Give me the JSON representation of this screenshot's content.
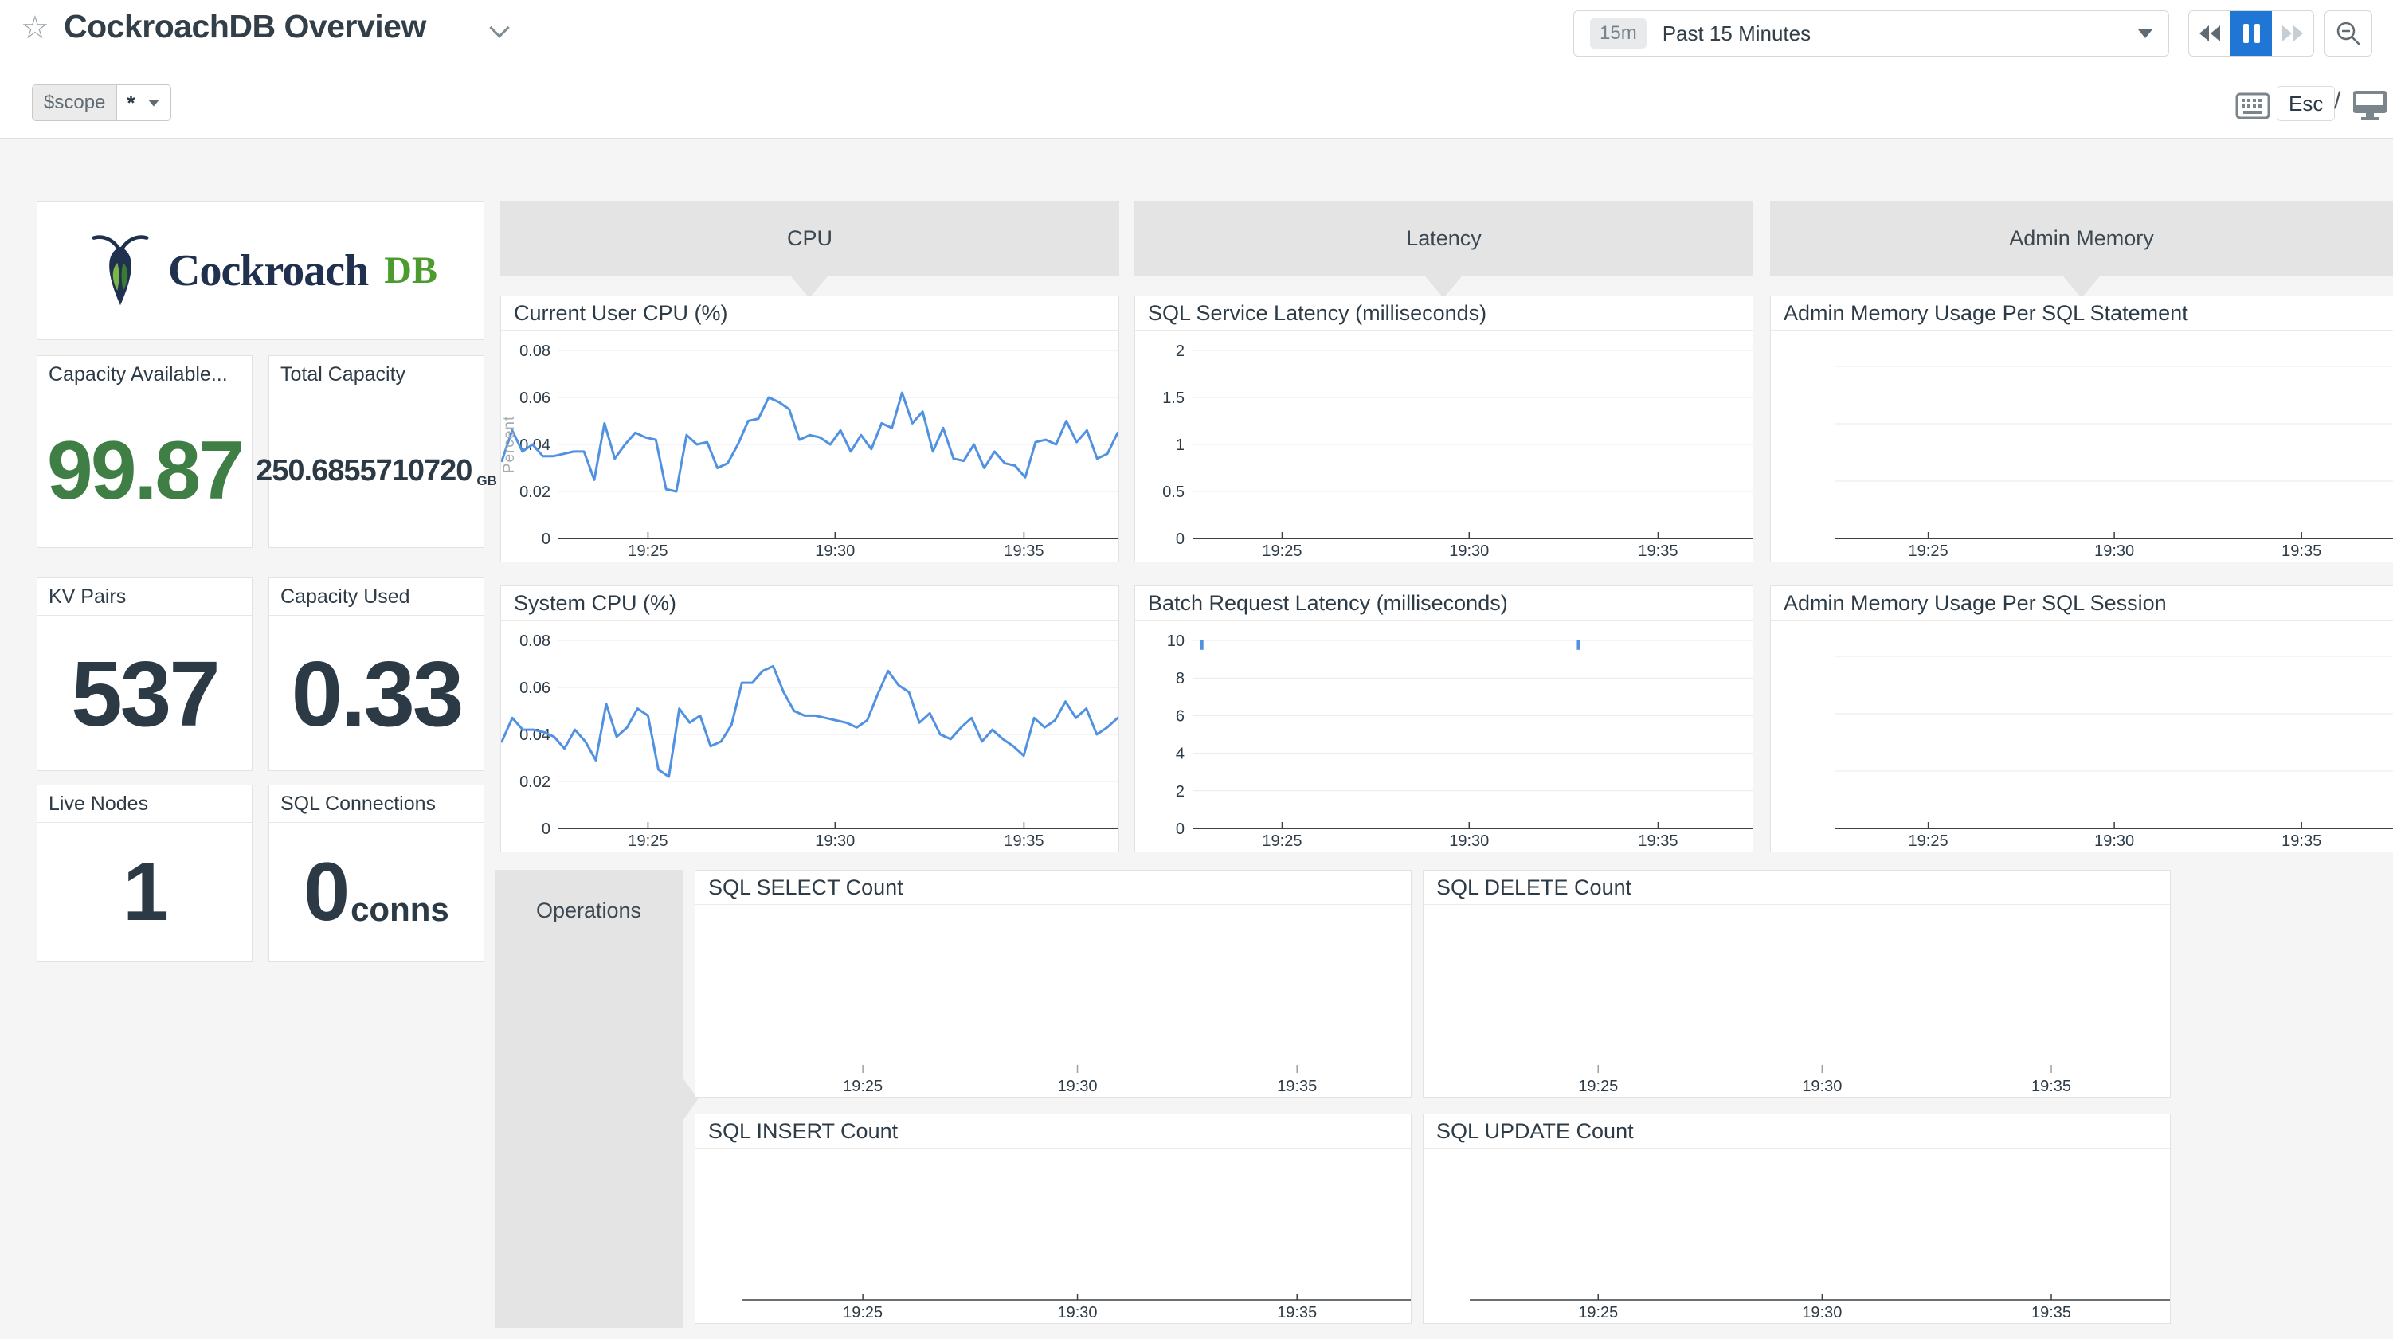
{
  "header": {
    "title": "CockroachDB Overview",
    "template_var": {
      "name": "$scope",
      "value": "*"
    },
    "time": {
      "badge": "15m",
      "label": "Past 15 Minutes"
    },
    "esc_label": "Esc",
    "slash": "/"
  },
  "logo": {
    "wordmark": "Cockroach",
    "suffix": "DB"
  },
  "sections": {
    "cpu": "CPU",
    "latency": "Latency",
    "admin": "Admin Memory",
    "operations": "Operations"
  },
  "stats": {
    "capacity_available": {
      "label": "Capacity Available...",
      "value": "99.87"
    },
    "total_capacity": {
      "label": "Total Capacity",
      "value": "250.6855710720",
      "unit": "GB"
    },
    "kv_pairs": {
      "label": "KV Pairs",
      "value": "537"
    },
    "capacity_used": {
      "label": "Capacity Used",
      "value": "0.33"
    },
    "live_nodes": {
      "label": "Live Nodes",
      "value": "1"
    },
    "sql_connections": {
      "label": "SQL Connections",
      "value": "0",
      "unit": "conns"
    }
  },
  "colors": {
    "accent_blue": "#1f76d4",
    "line_blue": "#5191e1",
    "value_green": "#3f7e44",
    "band_gray": "#e4e4e4"
  },
  "chart_data": {
    "current_user_cpu": {
      "type": "line",
      "title": "Current User CPU (%)",
      "ylabel": "Percent",
      "ymax": 0.08,
      "gutter": 72,
      "axis": true,
      "yticks": [
        {
          "v": 0.08,
          "label": "0.08"
        },
        {
          "v": 0.06,
          "label": "0.06"
        },
        {
          "v": 0.04,
          "label": "0.04"
        },
        {
          "v": 0.02,
          "label": "0.02"
        },
        {
          "v": 0,
          "label": "0"
        }
      ],
      "xticks": {
        "labels": [
          "19:25",
          "19:30",
          "19:35"
        ],
        "fractions": [
          0.238,
          0.541,
          0.847
        ]
      },
      "values": [
        0.033,
        0.046,
        0.037,
        0.04,
        0.035,
        0.035,
        0.036,
        0.037,
        0.037,
        0.025,
        0.049,
        0.034,
        0.04,
        0.045,
        0.043,
        0.042,
        0.021,
        0.02,
        0.044,
        0.04,
        0.041,
        0.03,
        0.032,
        0.04,
        0.05,
        0.051,
        0.06,
        0.058,
        0.055,
        0.042,
        0.044,
        0.043,
        0.04,
        0.046,
        0.037,
        0.044,
        0.038,
        0.049,
        0.047,
        0.062,
        0.049,
        0.054,
        0.037,
        0.047,
        0.034,
        0.033,
        0.04,
        0.03,
        0.037,
        0.032,
        0.031,
        0.026,
        0.041,
        0.042,
        0.04,
        0.05,
        0.041,
        0.046,
        0.034,
        0.036,
        0.045
      ]
    },
    "system_cpu": {
      "type": "line",
      "title": "System CPU (%)",
      "ymax": 0.08,
      "gutter": 72,
      "axis": true,
      "yticks": [
        {
          "v": 0.08,
          "label": "0.08"
        },
        {
          "v": 0.06,
          "label": "0.06"
        },
        {
          "v": 0.04,
          "label": "0.04"
        },
        {
          "v": 0.02,
          "label": "0.02"
        },
        {
          "v": 0,
          "label": "0"
        }
      ],
      "xticks": {
        "labels": [
          "19:25",
          "19:30",
          "19:35"
        ],
        "fractions": [
          0.238,
          0.541,
          0.847
        ]
      },
      "values": [
        0.037,
        0.047,
        0.042,
        0.042,
        0.041,
        0.039,
        0.034,
        0.042,
        0.037,
        0.029,
        0.053,
        0.039,
        0.043,
        0.051,
        0.048,
        0.025,
        0.022,
        0.051,
        0.045,
        0.048,
        0.035,
        0.037,
        0.044,
        0.062,
        0.062,
        0.067,
        0.069,
        0.058,
        0.05,
        0.048,
        0.048,
        0.047,
        0.046,
        0.045,
        0.043,
        0.046,
        0.057,
        0.067,
        0.061,
        0.058,
        0.045,
        0.049,
        0.04,
        0.038,
        0.043,
        0.047,
        0.037,
        0.042,
        0.038,
        0.035,
        0.031,
        0.047,
        0.043,
        0.046,
        0.054,
        0.047,
        0.051,
        0.04,
        0.043,
        0.047
      ]
    },
    "sql_service_latency": {
      "type": "line",
      "title": "SQL Service Latency (milliseconds)",
      "ymax": 2,
      "gutter": 72,
      "axis": true,
      "yticks": [
        {
          "v": 2,
          "label": "2"
        },
        {
          "v": 1.5,
          "label": "1.5"
        },
        {
          "v": 1,
          "label": "1"
        },
        {
          "v": 0.5,
          "label": "0.5"
        },
        {
          "v": 0,
          "label": "0"
        }
      ],
      "xticks": {
        "labels": [
          "19:25",
          "19:30",
          "19:35"
        ],
        "fractions": [
          0.238,
          0.541,
          0.847
        ]
      },
      "values": []
    },
    "batch_request_latency": {
      "type": "line",
      "title": "Batch Request Latency (milliseconds)",
      "ymax": 10,
      "gutter": 72,
      "axis": true,
      "yticks": [
        {
          "v": 10,
          "label": "10"
        },
        {
          "v": 8,
          "label": "8"
        },
        {
          "v": 6,
          "label": "6"
        },
        {
          "v": 4,
          "label": "4"
        },
        {
          "v": 2,
          "label": "2"
        },
        {
          "v": 0,
          "label": "0"
        }
      ],
      "xticks": {
        "labels": [
          "19:25",
          "19:30",
          "19:35"
        ],
        "fractions": [
          0.238,
          0.541,
          0.847
        ]
      },
      "values": [],
      "spikes": [
        {
          "f": 0.108,
          "from": 10,
          "to": 9.5
        },
        {
          "f": 0.718,
          "from": 10,
          "to": 9.5
        }
      ]
    },
    "admin_memory_statement": {
      "type": "line",
      "title": "Admin Memory Usage Per SQL Statement",
      "ymax": 1,
      "gutter": 80,
      "axis": true,
      "gridcount": 3,
      "xticks": {
        "labels": [
          "19:25",
          "19:30",
          "19:35"
        ],
        "fractions": [
          0.253,
          0.552,
          0.853
        ]
      },
      "values": []
    },
    "admin_memory_session": {
      "type": "line",
      "title": "Admin Memory Usage Per SQL Session",
      "ymax": 1,
      "gutter": 80,
      "axis": true,
      "gridcount": 3,
      "xticks": {
        "labels": [
          "19:25",
          "19:30",
          "19:35"
        ],
        "fractions": [
          0.253,
          0.552,
          0.853
        ]
      },
      "values": []
    },
    "sql_select_count": {
      "type": "line",
      "title": "SQL SELECT Count",
      "ymax": 1,
      "gutter": 58,
      "axis": false,
      "xticks": {
        "labels": [
          "19:25",
          "19:30",
          "19:35"
        ],
        "fractions": [
          0.234,
          0.534,
          0.841
        ]
      },
      "values": []
    },
    "sql_delete_count": {
      "type": "line",
      "title": "SQL DELETE Count",
      "ymax": 1,
      "gutter": 58,
      "axis": false,
      "xticks": {
        "labels": [
          "19:25",
          "19:30",
          "19:35"
        ],
        "fractions": [
          0.234,
          0.534,
          0.841
        ]
      },
      "values": []
    },
    "sql_insert_count": {
      "type": "line",
      "title": "SQL INSERT Count",
      "ymax": 1,
      "gutter": 58,
      "axis": true,
      "axis_w": 1.5,
      "xticks": {
        "labels": [
          "19:25",
          "19:30",
          "19:35"
        ],
        "fractions": [
          0.234,
          0.534,
          0.841
        ]
      },
      "values": []
    },
    "sql_update_count": {
      "type": "line",
      "title": "SQL UPDATE Count",
      "ymax": 1,
      "gutter": 58,
      "axis": true,
      "axis_w": 1.5,
      "xticks": {
        "labels": [
          "19:25",
          "19:30",
          "19:35"
        ],
        "fractions": [
          0.234,
          0.534,
          0.841
        ]
      },
      "values": []
    }
  }
}
